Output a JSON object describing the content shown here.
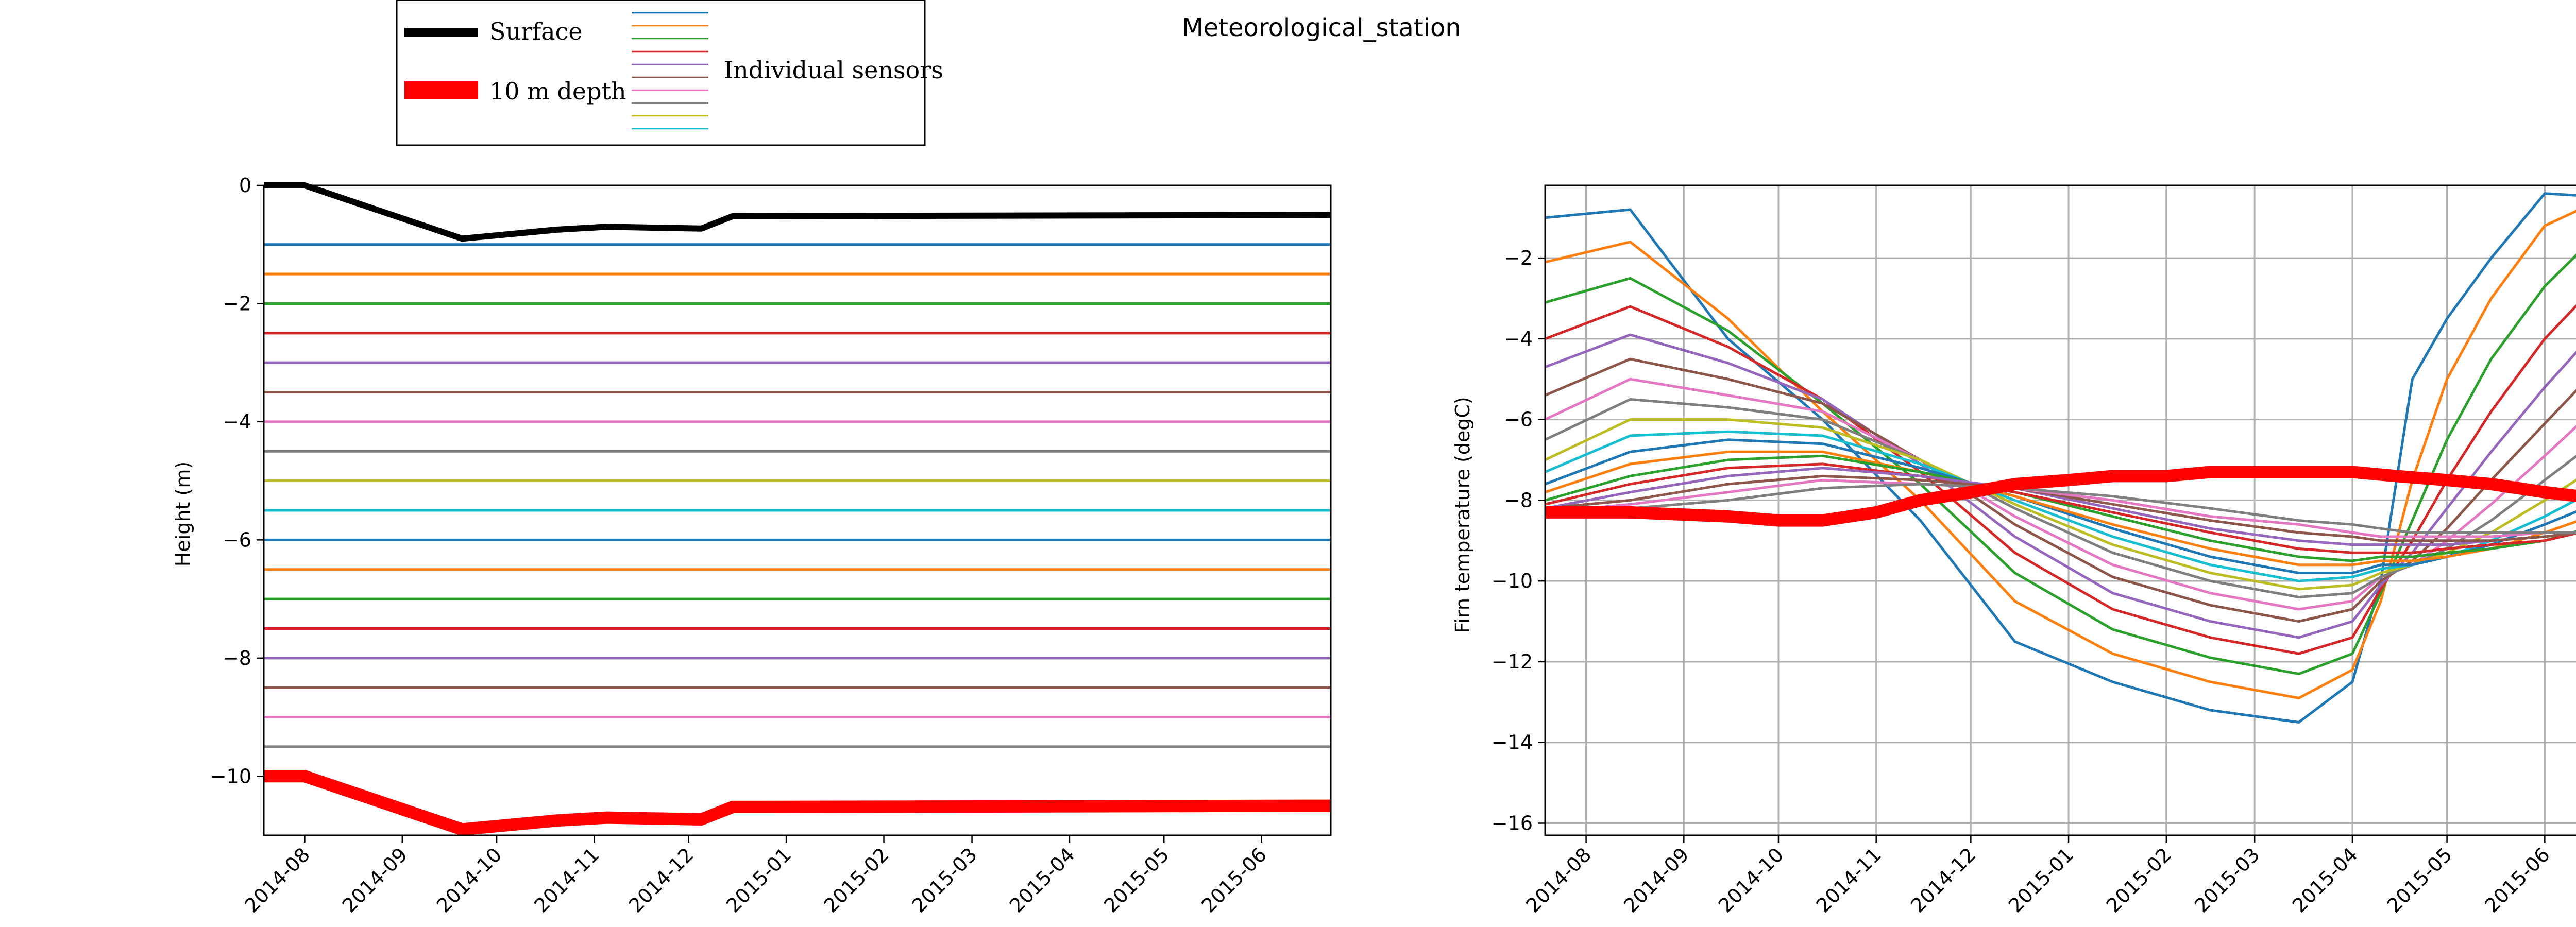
{
  "title": "Meteorological_station",
  "legend": {
    "surface_label": "Surface",
    "depth_label": "10 m depth",
    "sensors_label": "Individual sensors"
  },
  "colors": {
    "surface": "#000000",
    "depth10": "#ff0000",
    "sensor_cycle": [
      "#1f77b4",
      "#ff7f0e",
      "#2ca02c",
      "#d62728",
      "#9467bd",
      "#8c564b",
      "#e377c2",
      "#7f7f7f",
      "#bcbd22",
      "#17becf"
    ]
  },
  "chart_data": [
    {
      "type": "line",
      "xlabel": "",
      "ylabel": "Height (m)",
      "x_range": [
        "2014-07-19",
        "2015-06-23"
      ],
      "ylim": [
        -11,
        0
      ],
      "yticks": [
        0,
        -2,
        -4,
        -6,
        -8,
        -10
      ],
      "yticklabels": [
        "0",
        "−2",
        "−4",
        "−6",
        "−8",
        "−10"
      ],
      "xticks": [
        "2014-08-01",
        "2014-09-01",
        "2014-10-01",
        "2014-11-01",
        "2014-12-01",
        "2015-01-01",
        "2015-02-01",
        "2015-03-01",
        "2015-04-01",
        "2015-05-01",
        "2015-06-01"
      ],
      "xticklabels": [
        "2014-08",
        "2014-09",
        "2014-10",
        "2014-11",
        "2014-12",
        "2015-01",
        "2015-02",
        "2015-03",
        "2015-04",
        "2015-05",
        "2015-06"
      ],
      "grid": false,
      "surface": {
        "x": [
          "2014-07-19",
          "2014-08-01",
          "2014-09-20",
          "2014-10-20",
          "2014-11-05",
          "2014-12-05",
          "2014-12-15",
          "2015-06-23"
        ],
        "y": [
          0,
          0,
          -0.9,
          -0.75,
          -0.7,
          -0.73,
          -0.52,
          -0.5
        ]
      },
      "depth_10m": {
        "x": [
          "2014-07-19",
          "2014-08-01",
          "2014-09-20",
          "2014-10-20",
          "2014-11-05",
          "2014-12-05",
          "2014-12-15",
          "2015-06-23"
        ],
        "y": [
          -10,
          -10,
          -10.9,
          -10.75,
          -10.7,
          -10.73,
          -10.52,
          -10.5
        ]
      },
      "sensor_depths": [
        -1,
        -1.5,
        -2,
        -2.5,
        -3,
        -3.5,
        -4,
        -4.5,
        -5,
        -5.5,
        -6,
        -6.5,
        -7,
        -7.5,
        -8,
        -8.5,
        -9,
        -9.5
      ]
    },
    {
      "type": "line",
      "xlabel": "",
      "ylabel": "Firn temperature (degC)",
      "x_range": [
        "2014-07-19",
        "2015-06-23"
      ],
      "ylim": [
        -16.3,
        -0.2
      ],
      "yticks": [
        -2,
        -4,
        -6,
        -8,
        -10,
        -12,
        -14,
        -16
      ],
      "yticklabels": [
        "−2",
        "−4",
        "−6",
        "−8",
        "−10",
        "−12",
        "−14",
        "−16"
      ],
      "xticks": [
        "2014-08-01",
        "2014-09-01",
        "2014-10-01",
        "2014-11-01",
        "2014-12-01",
        "2015-01-01",
        "2015-02-01",
        "2015-03-01",
        "2015-04-01",
        "2015-05-01",
        "2015-06-01"
      ],
      "xticklabels": [
        "2014-08",
        "2014-09",
        "2014-10",
        "2014-11",
        "2014-12",
        "2015-01",
        "2015-02",
        "2015-03",
        "2015-04",
        "2015-05",
        "2015-06"
      ],
      "grid": true,
      "x": [
        "2014-07-19",
        "2014-08-15",
        "2014-09-15",
        "2014-10-15",
        "2014-11-15",
        "2014-12-15",
        "2015-01-15",
        "2015-02-15",
        "2015-03-15",
        "2015-04-01",
        "2015-04-10",
        "2015-04-20",
        "2015-05-01",
        "2015-05-15",
        "2015-06-01",
        "2015-06-23"
      ],
      "series": [
        {
          "values": [
            -1.0,
            -0.8,
            -4.0,
            -6.0,
            -8.5,
            -11.5,
            -12.5,
            -13.2,
            -13.5,
            -12.5,
            -10.0,
            -5.0,
            -3.5,
            -2.0,
            -0.4,
            -0.5
          ]
        },
        {
          "values": [
            -2.1,
            -1.6,
            -3.5,
            -5.8,
            -8.0,
            -10.5,
            -11.8,
            -12.5,
            -12.9,
            -12.2,
            -10.5,
            -7.5,
            -5.0,
            -3.0,
            -1.2,
            -0.4
          ]
        },
        {
          "values": [
            -3.1,
            -2.5,
            -3.8,
            -5.6,
            -7.6,
            -9.8,
            -11.2,
            -11.9,
            -12.3,
            -11.8,
            -10.3,
            -8.5,
            -6.5,
            -4.5,
            -2.7,
            -1.0
          ]
        },
        {
          "values": [
            -4.0,
            -3.2,
            -4.2,
            -5.5,
            -7.3,
            -9.3,
            -10.7,
            -11.4,
            -11.8,
            -11.4,
            -10.2,
            -9.0,
            -7.5,
            -5.8,
            -4.0,
            -2.2
          ]
        },
        {
          "values": [
            -4.7,
            -3.9,
            -4.6,
            -5.5,
            -7.1,
            -8.9,
            -10.3,
            -11.0,
            -11.4,
            -11.0,
            -10.1,
            -9.3,
            -8.2,
            -6.8,
            -5.2,
            -3.3
          ]
        },
        {
          "values": [
            -5.4,
            -4.5,
            -5.0,
            -5.6,
            -7.0,
            -8.6,
            -9.9,
            -10.6,
            -11.0,
            -10.7,
            -10.0,
            -9.5,
            -8.7,
            -7.5,
            -6.1,
            -4.3
          ]
        },
        {
          "values": [
            -6.0,
            -5.0,
            -5.4,
            -5.8,
            -7.0,
            -8.4,
            -9.6,
            -10.3,
            -10.7,
            -10.5,
            -9.9,
            -9.6,
            -9.0,
            -8.1,
            -6.9,
            -5.3
          ]
        },
        {
          "values": [
            -6.5,
            -5.5,
            -5.7,
            -6.0,
            -7.0,
            -8.2,
            -9.3,
            -10.0,
            -10.4,
            -10.3,
            -9.9,
            -9.6,
            -9.2,
            -8.5,
            -7.5,
            -6.2
          ]
        },
        {
          "values": [
            -7.0,
            -6.0,
            -6.0,
            -6.2,
            -7.0,
            -8.1,
            -9.1,
            -9.8,
            -10.2,
            -10.1,
            -9.8,
            -9.6,
            -9.3,
            -8.8,
            -8.0,
            -6.9
          ]
        },
        {
          "values": [
            -7.3,
            -6.4,
            -6.3,
            -6.4,
            -7.1,
            -8.0,
            -8.9,
            -9.6,
            -10.0,
            -9.9,
            -9.7,
            -9.6,
            -9.4,
            -9.0,
            -8.4,
            -7.5
          ]
        },
        {
          "values": [
            -7.6,
            -6.8,
            -6.5,
            -6.6,
            -7.2,
            -7.9,
            -8.7,
            -9.4,
            -9.8,
            -9.8,
            -9.6,
            -9.6,
            -9.4,
            -9.1,
            -8.6,
            -7.9
          ]
        },
        {
          "values": [
            -7.8,
            -7.1,
            -6.8,
            -6.8,
            -7.3,
            -7.9,
            -8.6,
            -9.2,
            -9.6,
            -9.6,
            -9.5,
            -9.5,
            -9.4,
            -9.2,
            -8.8,
            -8.2
          ]
        },
        {
          "values": [
            -8.0,
            -7.4,
            -7.0,
            -6.9,
            -7.3,
            -7.8,
            -8.4,
            -9.0,
            -9.4,
            -9.5,
            -9.4,
            -9.4,
            -9.3,
            -9.2,
            -9.0,
            -8.5
          ]
        },
        {
          "values": [
            -8.1,
            -7.6,
            -7.2,
            -7.1,
            -7.4,
            -7.8,
            -8.3,
            -8.8,
            -9.2,
            -9.3,
            -9.3,
            -9.3,
            -9.2,
            -9.1,
            -9.0,
            -8.6
          ]
        },
        {
          "values": [
            -8.2,
            -7.8,
            -7.4,
            -7.2,
            -7.4,
            -7.7,
            -8.2,
            -8.7,
            -9.0,
            -9.1,
            -9.1,
            -9.1,
            -9.1,
            -9.0,
            -8.9,
            -8.7
          ]
        },
        {
          "values": [
            -8.2,
            -8.0,
            -7.6,
            -7.4,
            -7.5,
            -7.7,
            -8.1,
            -8.5,
            -8.8,
            -8.9,
            -9.0,
            -9.0,
            -9.0,
            -9.0,
            -8.9,
            -8.7
          ]
        },
        {
          "values": [
            -8.3,
            -8.1,
            -7.8,
            -7.5,
            -7.6,
            -7.7,
            -8.0,
            -8.4,
            -8.6,
            -8.8,
            -8.9,
            -8.9,
            -8.9,
            -8.9,
            -8.8,
            -8.8
          ]
        },
        {
          "values": [
            -8.3,
            -8.2,
            -8.0,
            -7.7,
            -7.6,
            -7.7,
            -7.9,
            -8.2,
            -8.5,
            -8.6,
            -8.7,
            -8.8,
            -8.8,
            -8.8,
            -8.8,
            -8.8
          ]
        }
      ],
      "depth_10m": {
        "x": [
          "2014-07-19",
          "2014-08-15",
          "2014-09-15",
          "2014-10-01",
          "2014-10-15",
          "2014-11-01",
          "2014-11-15",
          "2014-12-01",
          "2014-12-15",
          "2015-01-01",
          "2015-01-15",
          "2015-02-01",
          "2015-02-15",
          "2015-03-01",
          "2015-03-15",
          "2015-04-01",
          "2015-04-15",
          "2015-05-01",
          "2015-05-15",
          "2015-06-01",
          "2015-06-23"
        ],
        "y": [
          -8.3,
          -8.3,
          -8.4,
          -8.5,
          -8.5,
          -8.3,
          -8.0,
          -7.8,
          -7.6,
          -7.5,
          -7.4,
          -7.4,
          -7.3,
          -7.3,
          -7.3,
          -7.3,
          -7.4,
          -7.5,
          -7.6,
          -7.8,
          -8.0
        ]
      }
    }
  ]
}
